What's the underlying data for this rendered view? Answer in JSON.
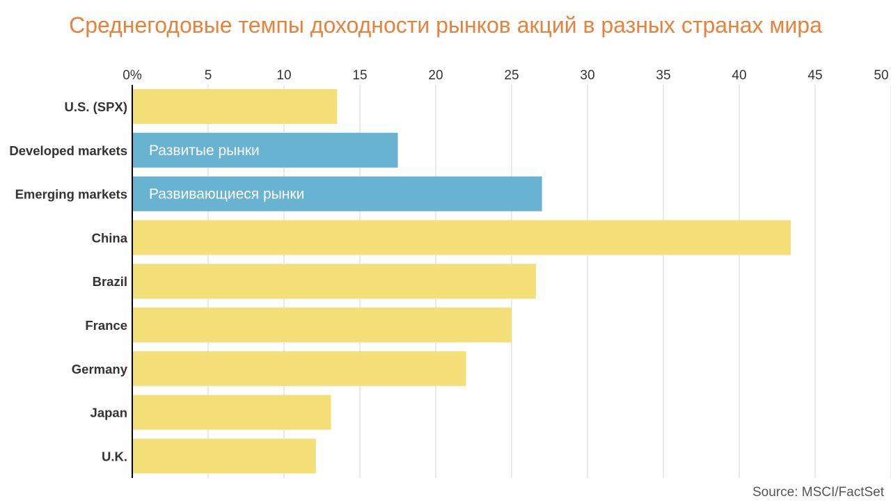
{
  "title": "Среднегодовые темпы доходности рынков акций в разных странах мира",
  "source": "Source: MSCI/FactSet",
  "colors": {
    "title": "#E8823A",
    "bar_default": "#F5DF78",
    "bar_highlight": "#67B3D1",
    "grid": "#DDDDDD",
    "axis": "#000000",
    "text": "#333333",
    "bar_label": "#FFFFFF"
  },
  "chart_data": {
    "type": "bar",
    "orientation": "horizontal",
    "categories": [
      "U.S. (SPX)",
      "Developed markets",
      "Emerging markets",
      "China",
      "Brazil",
      "France",
      "Germany",
      "Japan",
      "U.K."
    ],
    "values": [
      13.5,
      17.5,
      27.0,
      43.4,
      26.6,
      25.0,
      22.0,
      13.1,
      12.1
    ],
    "bar_labels": [
      "",
      "Развитые рынки",
      "Развивающиеся рынки",
      "",
      "",
      "",
      "",
      "",
      ""
    ],
    "highlighted": [
      false,
      true,
      true,
      false,
      false,
      false,
      false,
      false,
      false
    ],
    "x_ticks": [
      0,
      5,
      10,
      15,
      20,
      25,
      30,
      35,
      40,
      45,
      50
    ],
    "x_tick_labels": [
      "0%",
      "5",
      "10",
      "15",
      "20",
      "25",
      "30",
      "35",
      "40",
      "45",
      "50"
    ],
    "xlim": [
      0,
      50
    ],
    "grid": true,
    "axis_position": "top"
  }
}
